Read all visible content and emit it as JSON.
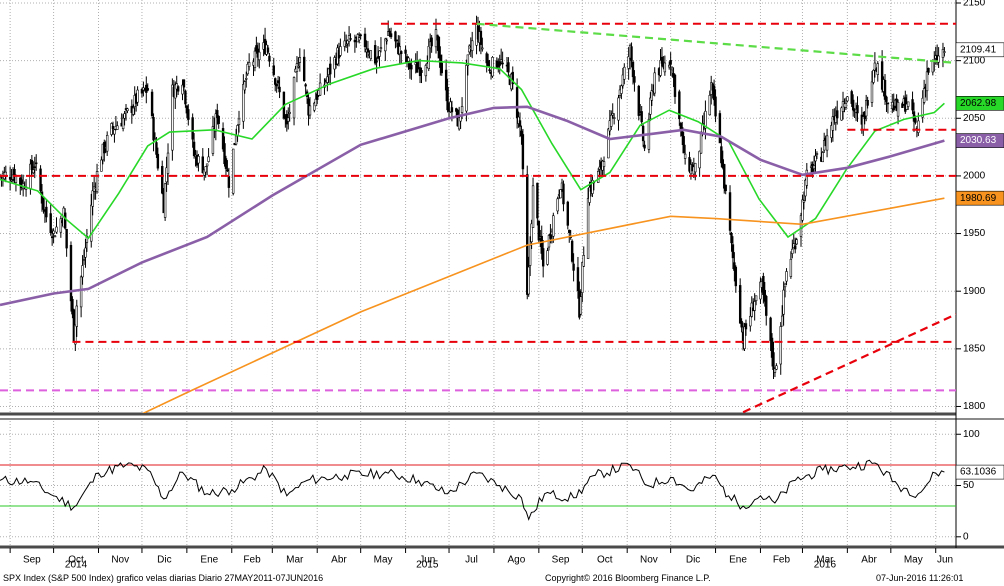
{
  "footer": {
    "left": "SPX Index (S&P 500 Index) grafico velas diarias  Diario 27MAY2011-07JUN2016",
    "center": "Copyright© 2016 Bloomberg Finance L.P.",
    "right": "07-Jun-2016 11:26:01"
  },
  "chart_data": {
    "type": "candlestick",
    "instrument": "SPX Index (S&P 500 Index)",
    "frequency": "Diario",
    "price_axis": {
      "range": [
        1790,
        2150
      ],
      "ticks": [
        1800,
        1850,
        1900,
        1950,
        2000,
        2050,
        2100,
        2150
      ]
    },
    "rsi_axis": {
      "range": [
        -8,
        110
      ],
      "ticks": [
        0,
        50,
        100
      ]
    },
    "months": [
      "Sep",
      "Oct",
      "Nov",
      "Dic",
      "Ene",
      "Feb",
      "Mar",
      "Abr",
      "May",
      "Jun",
      "Jul",
      "Ago",
      "Sep",
      "Oct",
      "Nov",
      "Dic",
      "Ene",
      "Feb",
      "Mar",
      "Abr",
      "May",
      "Jun"
    ],
    "years": [
      {
        "label": "2014",
        "month_index": 1
      },
      {
        "label": "2015",
        "month_index": 9
      },
      {
        "label": "2016",
        "month_index": 18
      }
    ],
    "close_path": [
      [
        "2014-08-25",
        2000
      ],
      [
        "2014-09-03",
        2002
      ],
      [
        "2014-09-10",
        1992
      ],
      [
        "2014-09-18",
        2011
      ],
      [
        "2014-09-25",
        1968
      ],
      [
        "2014-10-01",
        1950
      ],
      [
        "2014-10-08",
        1968
      ],
      [
        "2014-10-15",
        1862
      ],
      [
        "2014-10-17",
        1888
      ],
      [
        "2014-10-22",
        1928
      ],
      [
        "2014-10-28",
        1985
      ],
      [
        "2014-11-03",
        2018
      ],
      [
        "2014-11-10",
        2040
      ],
      [
        "2014-11-20",
        2052
      ],
      [
        "2014-11-28",
        2068
      ],
      [
        "2014-12-05",
        2075
      ],
      [
        "2014-12-10",
        2028
      ],
      [
        "2014-12-16",
        1975
      ],
      [
        "2014-12-22",
        2074
      ],
      [
        "2014-12-29",
        2085
      ],
      [
        "2015-01-06",
        2018
      ],
      [
        "2015-01-14",
        2005
      ],
      [
        "2015-01-22",
        2055
      ],
      [
        "2015-01-30",
        1995
      ],
      [
        "2015-02-06",
        2056
      ],
      [
        "2015-02-13",
        2096
      ],
      [
        "2015-02-25",
        2114
      ],
      [
        "2015-03-06",
        2071
      ],
      [
        "2015-03-11",
        2042
      ],
      [
        "2015-03-20",
        2108
      ],
      [
        "2015-03-26",
        2058
      ],
      [
        "2015-04-06",
        2080
      ],
      [
        "2015-04-15",
        2106
      ],
      [
        "2015-04-24",
        2117
      ],
      [
        "2015-05-04",
        2115
      ],
      [
        "2015-05-12",
        2099
      ],
      [
        "2015-05-20",
        2125
      ],
      [
        "2015-05-29",
        2107
      ],
      [
        "2015-06-05",
        2093
      ],
      [
        "2015-06-12",
        2094
      ],
      [
        "2015-06-22",
        2120
      ],
      [
        "2015-06-30",
        2063
      ],
      [
        "2015-07-08",
        2046
      ],
      [
        "2015-07-15",
        2107
      ],
      [
        "2015-07-20",
        2128
      ],
      [
        "2015-07-28",
        2094
      ],
      [
        "2015-08-05",
        2100
      ],
      [
        "2015-08-13",
        2083
      ],
      [
        "2015-08-20",
        2035
      ],
      [
        "2015-08-24",
        1893
      ],
      [
        "2015-08-28",
        1988
      ],
      [
        "2015-09-04",
        1921
      ],
      [
        "2015-09-16",
        1995
      ],
      [
        "2015-09-24",
        1932
      ],
      [
        "2015-09-29",
        1884
      ],
      [
        "2015-10-05",
        1987
      ],
      [
        "2015-10-13",
        2003
      ],
      [
        "2015-10-22",
        2052
      ],
      [
        "2015-11-03",
        2109
      ],
      [
        "2015-11-13",
        2023
      ],
      [
        "2015-11-20",
        2089
      ],
      [
        "2015-12-01",
        2102
      ],
      [
        "2015-12-11",
        2012
      ],
      [
        "2015-12-18",
        2005
      ],
      [
        "2015-12-29",
        2078
      ],
      [
        "2016-01-05",
        2016
      ],
      [
        "2016-01-12",
        1938
      ],
      [
        "2016-01-20",
        1859
      ],
      [
        "2016-01-28",
        1893
      ],
      [
        "2016-02-02",
        1903
      ],
      [
        "2016-02-08",
        1852
      ],
      [
        "2016-02-11",
        1829
      ],
      [
        "2016-02-19",
        1917
      ],
      [
        "2016-02-26",
        1948
      ],
      [
        "2016-03-04",
        1999
      ],
      [
        "2016-03-14",
        2019
      ],
      [
        "2016-03-22",
        2049
      ],
      [
        "2016-04-01",
        2072
      ],
      [
        "2016-04-11",
        2041
      ],
      [
        "2016-04-20",
        2102
      ],
      [
        "2016-04-29",
        2065
      ],
      [
        "2016-05-06",
        2057
      ],
      [
        "2016-05-12",
        2064
      ],
      [
        "2016-05-19",
        2040
      ],
      [
        "2016-05-26",
        2090
      ],
      [
        "2016-06-01",
        2099
      ],
      [
        "2016-06-07",
        2109
      ]
    ],
    "series": [
      {
        "color": "#28d828",
        "last": "2062.98",
        "points": [
          [
            "2014-08-25",
            1997
          ],
          [
            "2014-09-20",
            1987
          ],
          [
            "2014-10-10",
            1962
          ],
          [
            "2014-10-25",
            1946
          ],
          [
            "2014-11-15",
            1985
          ],
          [
            "2014-12-05",
            2026
          ],
          [
            "2014-12-20",
            2038
          ],
          [
            "2015-01-20",
            2040
          ],
          [
            "2015-02-15",
            2032
          ],
          [
            "2015-03-10",
            2062
          ],
          [
            "2015-04-10",
            2080
          ],
          [
            "2015-05-10",
            2093
          ],
          [
            "2015-06-10",
            2100
          ],
          [
            "2015-07-10",
            2098
          ],
          [
            "2015-08-05",
            2093
          ],
          [
            "2015-08-20",
            2075
          ],
          [
            "2015-09-10",
            2028
          ],
          [
            "2015-09-30",
            1988
          ],
          [
            "2015-10-20",
            2003
          ],
          [
            "2015-11-10",
            2044
          ],
          [
            "2015-11-30",
            2057
          ],
          [
            "2015-12-20",
            2047
          ],
          [
            "2016-01-10",
            2030
          ],
          [
            "2016-01-31",
            1980
          ],
          [
            "2016-02-20",
            1947
          ],
          [
            "2016-03-10",
            1963
          ],
          [
            "2016-03-31",
            2005
          ],
          [
            "2016-04-20",
            2039
          ],
          [
            "2016-05-10",
            2049
          ],
          [
            "2016-05-31",
            2055
          ],
          [
            "2016-06-07",
            2062.98
          ]
        ]
      },
      {
        "color": "#8a5fa8",
        "last": "2030.63",
        "points": [
          [
            "2014-08-25",
            1888
          ],
          [
            "2014-10-01",
            1898
          ],
          [
            "2014-10-25",
            1902
          ],
          [
            "2014-12-01",
            1925
          ],
          [
            "2015-01-15",
            1947
          ],
          [
            "2015-03-01",
            1983
          ],
          [
            "2015-05-01",
            2027
          ],
          [
            "2015-07-01",
            2050
          ],
          [
            "2015-08-01",
            2059
          ],
          [
            "2015-08-24",
            2060
          ],
          [
            "2015-09-20",
            2048
          ],
          [
            "2015-10-20",
            2032
          ],
          [
            "2015-11-15",
            2036
          ],
          [
            "2015-12-10",
            2040
          ],
          [
            "2016-01-05",
            2034
          ],
          [
            "2016-02-01",
            2014
          ],
          [
            "2016-03-01",
            2001
          ],
          [
            "2016-04-01",
            2007
          ],
          [
            "2016-05-01",
            2017
          ],
          [
            "2016-06-07",
            2030.63
          ]
        ]
      },
      {
        "color": "#f7931e",
        "last": "1980.69",
        "points": [
          [
            "2014-08-25",
            1735
          ],
          [
            "2015-01-01",
            1812
          ],
          [
            "2015-05-01",
            1882
          ],
          [
            "2015-08-24",
            1940
          ],
          [
            "2015-12-01",
            1965
          ],
          [
            "2016-01-01",
            1963
          ],
          [
            "2016-03-01",
            1958
          ],
          [
            "2016-05-01",
            1972
          ],
          [
            "2016-06-07",
            1980.69
          ]
        ]
      }
    ],
    "last_close": "2109.41",
    "horizontal_levels": [
      {
        "value": 2132,
        "color": "#e8000b",
        "dash": true,
        "from": "2015-05-15",
        "to": "2016-06-15"
      },
      {
        "value": 2000,
        "color": "#e8000b",
        "dash": true,
        "from": "2014-08-25",
        "to": "2016-06-15"
      },
      {
        "value": 1856,
        "color": "#e8000b",
        "dash": true,
        "from": "2014-10-14",
        "to": "2016-06-15"
      },
      {
        "value": 2040,
        "color": "#e8000b",
        "dash": true,
        "from": "2016-04-01",
        "to": "2016-06-15"
      },
      {
        "value": 1814,
        "color": "#dd60dd",
        "dash": true,
        "from": "2014-08-25",
        "to": "2016-06-15"
      }
    ],
    "trendlines": [
      {
        "color": "#5cdc46",
        "points": [
          [
            "2015-07-20",
            2132
          ],
          [
            "2016-06-15",
            2098
          ]
        ]
      },
      {
        "color": "#e8000b",
        "points": [
          [
            "2016-01-20",
            1795
          ],
          [
            "2016-06-15",
            1880
          ]
        ]
      }
    ],
    "rsi": {
      "color": "#000000",
      "last": "63.1036",
      "levels": [
        {
          "value": 70,
          "color": "#e31a1c"
        },
        {
          "value": 30,
          "color": "#28c828"
        }
      ],
      "points": [
        [
          "2014-08-25",
          55
        ],
        [
          "2014-09-15",
          54
        ],
        [
          "2014-10-01",
          40
        ],
        [
          "2014-10-15",
          29
        ],
        [
          "2014-11-01",
          62
        ],
        [
          "2014-11-20",
          70
        ],
        [
          "2014-12-05",
          65
        ],
        [
          "2014-12-16",
          37
        ],
        [
          "2014-12-29",
          63
        ],
        [
          "2015-01-15",
          42
        ],
        [
          "2015-02-01",
          46
        ],
        [
          "2015-02-25",
          66
        ],
        [
          "2015-03-11",
          40
        ],
        [
          "2015-03-25",
          55
        ],
        [
          "2015-04-20",
          60
        ],
        [
          "2015-05-20",
          62
        ],
        [
          "2015-06-10",
          55
        ],
        [
          "2015-06-30",
          42
        ],
        [
          "2015-07-20",
          62
        ],
        [
          "2015-08-05",
          50
        ],
        [
          "2015-08-20",
          38
        ],
        [
          "2015-08-25",
          17
        ],
        [
          "2015-09-05",
          42
        ],
        [
          "2015-09-25",
          38
        ],
        [
          "2015-10-10",
          60
        ],
        [
          "2015-11-03",
          70
        ],
        [
          "2015-11-15",
          50
        ],
        [
          "2015-12-01",
          58
        ],
        [
          "2015-12-15",
          45
        ],
        [
          "2015-12-30",
          60
        ],
        [
          "2016-01-10",
          40
        ],
        [
          "2016-01-20",
          30
        ],
        [
          "2016-02-01",
          40
        ],
        [
          "2016-02-11",
          33
        ],
        [
          "2016-02-25",
          55
        ],
        [
          "2016-03-15",
          65
        ],
        [
          "2016-04-01",
          68
        ],
        [
          "2016-04-20",
          72
        ],
        [
          "2016-05-06",
          50
        ],
        [
          "2016-05-20",
          42
        ],
        [
          "2016-06-01",
          62
        ],
        [
          "2016-06-07",
          63.1
        ]
      ]
    }
  }
}
